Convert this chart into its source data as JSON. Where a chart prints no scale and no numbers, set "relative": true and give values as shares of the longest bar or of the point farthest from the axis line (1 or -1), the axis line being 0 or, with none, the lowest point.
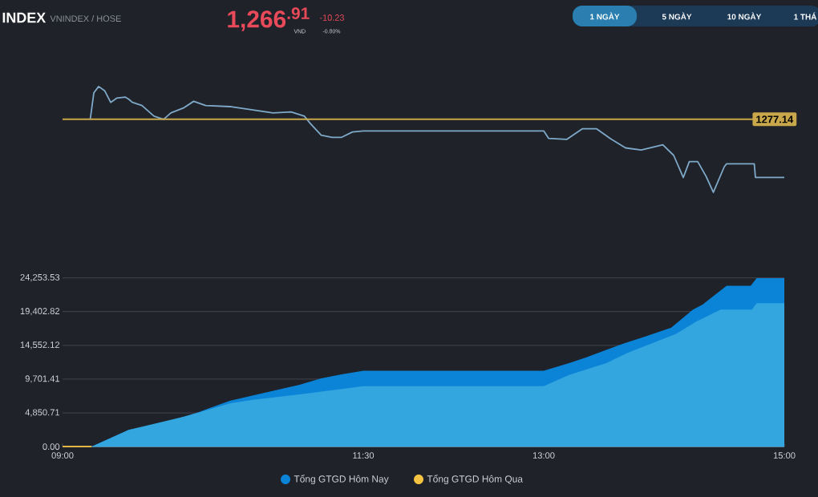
{
  "chart_data": [
    {
      "type": "line",
      "title": "INDEX",
      "subtitle": "VNINDEX / HOSE",
      "annotations": [
        "1,266$^{.91}$",
        "VND",
        "-10.23",
        "-0.80%",
        "1 NGÀY",
        "5 NGÀY",
        "10 NGÀY",
        "1 THÁ",
        "1277.14"
      ],
      "relative": true,
      "x": [
        9.23,
        9.26,
        9.3,
        9.35,
        9.4,
        9.45,
        9.52,
        9.55,
        9.58,
        9.66,
        9.76,
        9.84,
        9.9,
        10.01,
        10.09,
        10.19,
        10.39,
        10.57,
        10.75,
        10.9,
        11.01,
        11.06,
        11.15,
        11.24,
        11.32,
        11.41,
        11.5,
        13.0,
        13.04,
        13.19,
        13.32,
        13.44,
        13.55,
        13.68,
        13.81,
        13.99,
        14.08,
        14.16,
        14.21,
        14.28,
        14.35,
        14.41,
        14.5,
        14.52,
        14.75,
        14.76,
        15.0
      ],
      "series": [
        {
          "color": "#7fa9c9",
          "values": [
            0.69,
            0.94,
            1.0,
            0.96,
            0.85,
            0.89,
            0.9,
            0.88,
            0.85,
            0.82,
            0.72,
            0.69,
            0.75,
            0.8,
            0.86,
            0.82,
            0.81,
            0.78,
            0.75,
            0.76,
            0.72,
            0.65,
            0.54,
            0.52,
            0.52,
            0.57,
            0.58,
            0.58,
            0.51,
            0.5,
            0.6,
            0.6,
            0.51,
            0.42,
            0.4,
            0.45,
            0.35,
            0.14,
            0.29,
            0.29,
            0.15,
            0.0,
            0.24,
            0.27,
            0.27,
            0.14,
            0.14
          ]
        }
      ],
      "xlim": [
        9,
        15
      ],
      "tick_labels": false,
      "marker": "none",
      "ref_lines": [
        {
          "axis": "y",
          "value": 0.69,
          "color": "#c8a84a"
        }
      ]
    },
    {
      "type": "area",
      "series": [
        {
          "name": "Tổng GTGD Hôm Nay",
          "color": "#0b84d8",
          "x": [
            9.24,
            9.55,
            9.81,
            10.01,
            10.12,
            10.39,
            10.57,
            10.97,
            11.15,
            11.32,
            11.5,
            13.0,
            13.21,
            13.35,
            13.66,
            13.84,
            14.06,
            14.24,
            14.32,
            14.52,
            14.72,
            14.77,
            15.0
          ],
          "values": [
            0,
            2400,
            3300,
            4300,
            4900,
            6600,
            7300,
            8900,
            9800,
            10400,
            10900,
            10900,
            12000,
            12800,
            14800,
            15800,
            17100,
            19700,
            20400,
            23100,
            23100,
            24200,
            24200
          ]
        },
        {
          "color": "#34a6df",
          "x": [
            9.24,
            9.55,
            10.01,
            10.39,
            10.57,
            10.97,
            11.32,
            11.5,
            13.0,
            13.21,
            13.52,
            13.7,
            14.1,
            14.27,
            14.47,
            14.73,
            14.77,
            15.0
          ],
          "values": [
            0,
            2400,
            4300,
            6200,
            6700,
            7500,
            8300,
            8700,
            8700,
            10300,
            12000,
            13500,
            16200,
            18000,
            19700,
            19700,
            20600,
            20600
          ]
        },
        {
          "name": "Tổng GTGD Hôm Qua",
          "type": "line",
          "color": "#f5c342",
          "x": [
            9.0,
            9.24
          ],
          "values": [
            0,
            0
          ]
        }
      ],
      "xlim": [
        9,
        15
      ],
      "ylim": [
        0,
        24253.53
      ],
      "xticks": [
        {
          "value": 9,
          "label": "09:00"
        },
        {
          "value": 11.5,
          "label": "11:30"
        },
        {
          "value": 13,
          "label": "13:00"
        },
        {
          "value": 15,
          "label": "15:00"
        }
      ],
      "yticks": [
        {
          "value": 0,
          "label": "0.00"
        },
        {
          "value": 4850.71,
          "label": "4,850.71"
        },
        {
          "value": 9701.41,
          "label": "9,701.41"
        },
        {
          "value": 14552.12,
          "label": "14,552.12"
        },
        {
          "value": 19402.82,
          "label": "19,402.82"
        },
        {
          "value": 24253.53,
          "label": "24,253.53"
        }
      ],
      "grid": "y",
      "legend": "bottom",
      "marker": "none"
    }
  ]
}
